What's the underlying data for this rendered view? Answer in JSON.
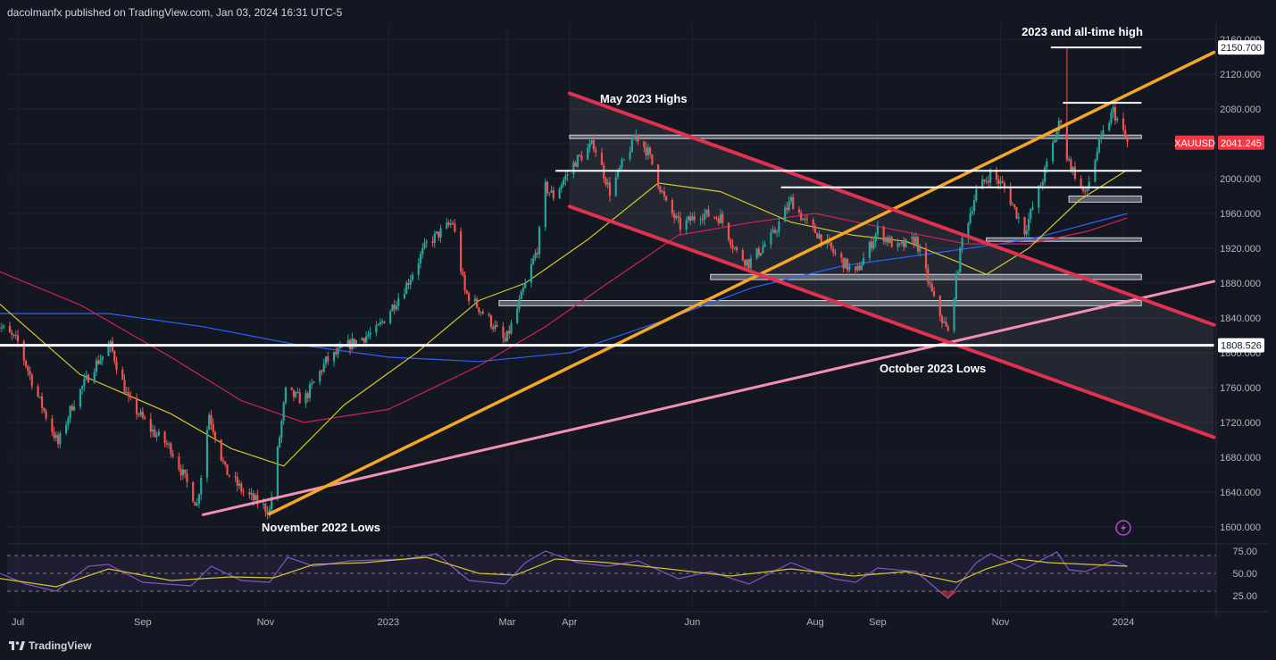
{
  "header": {
    "publisher_text": "dacolmanfx published on TradingView.com, Jan 03, 2024 16:31 UTC-5"
  },
  "footer": {
    "logo_text": "TradingView"
  },
  "colors": {
    "background": "#131722",
    "up_candle": "#26a69a",
    "down_candle": "#ef5350",
    "resistance_trendline": "#f5a623",
    "channel_lines": "#e0314e",
    "support_trendline": "#f48fb1",
    "sma50": "#d4c62a",
    "sma100": "#d3205b",
    "sma200": "#2962ff",
    "rsi_line": "#7e57c2",
    "rsi_signal": "#d4c62a",
    "price_tag": "#f23645"
  },
  "icons": {
    "alert": "alert-bolt-icon",
    "logo": "tradingview-logo-icon"
  },
  "chart_data": {
    "type": "candlestick",
    "symbol": "XAUUSD",
    "last_price": "2041.245",
    "marked_level": "1808.526",
    "marked_high": "2150.700",
    "ylim": [
      1600,
      2160
    ],
    "y_ticks": [
      "2160.000",
      "2120.000",
      "2080.000",
      "2040.000",
      "2000.000",
      "1960.000",
      "1920.000",
      "1880.000",
      "1840.000",
      "1800.000",
      "1760.000",
      "1720.000",
      "1680.000",
      "1640.000",
      "1600.000"
    ],
    "x_ticks": [
      "Jul",
      "Sep",
      "Nov",
      "2023",
      "Mar",
      "Apr",
      "Jun",
      "Aug",
      "Sep",
      "Nov",
      "2024"
    ],
    "x_tick_dates": [
      "2022-07-01",
      "2022-09-01",
      "2022-11-01",
      "2023-01-01",
      "2023-03-01",
      "2023-04-01",
      "2023-06-01",
      "2023-08-01",
      "2023-09-01",
      "2023-11-01",
      "2024-01-01"
    ],
    "annotations": {
      "ath": "2023 and all-time high",
      "may_highs": "May 2023 Highs",
      "oct_lows": "October 2023 Lows",
      "nov_lows": "November 2022 Lows"
    },
    "anchors": [
      [
        "2022-06-20",
        1835
      ],
      [
        "2022-07-01",
        1812
      ],
      [
        "2022-07-10",
        1755
      ],
      [
        "2022-07-21",
        1695
      ],
      [
        "2022-07-28",
        1740
      ],
      [
        "2022-08-08",
        1785
      ],
      [
        "2022-08-16",
        1808
      ],
      [
        "2022-08-25",
        1745
      ],
      [
        "2022-09-05",
        1712
      ],
      [
        "2022-09-15",
        1690
      ],
      [
        "2022-09-28",
        1625
      ],
      [
        "2022-10-04",
        1730
      ],
      [
        "2022-10-12",
        1665
      ],
      [
        "2022-10-21",
        1640
      ],
      [
        "2022-11-03",
        1618
      ],
      [
        "2022-11-11",
        1755
      ],
      [
        "2022-11-20",
        1745
      ],
      [
        "2022-12-01",
        1790
      ],
      [
        "2022-12-13",
        1810
      ],
      [
        "2022-12-26",
        1825
      ],
      [
        "2023-01-10",
        1878
      ],
      [
        "2023-01-20",
        1925
      ],
      [
        "2023-02-02",
        1950
      ],
      [
        "2023-02-08",
        1870
      ],
      [
        "2023-02-20",
        1838
      ],
      [
        "2023-02-28",
        1812
      ],
      [
        "2023-03-06",
        1850
      ],
      [
        "2023-03-16",
        1920
      ],
      [
        "2023-03-20",
        1990
      ],
      [
        "2023-03-24",
        1980
      ],
      [
        "2023-04-04",
        2020
      ],
      [
        "2023-04-13",
        2040
      ],
      [
        "2023-04-21",
        1985
      ],
      [
        "2023-05-04",
        2050
      ],
      [
        "2023-05-10",
        2030
      ],
      [
        "2023-05-19",
        1970
      ],
      [
        "2023-05-26",
        1945
      ],
      [
        "2023-06-05",
        1960
      ],
      [
        "2023-06-15",
        1955
      ],
      [
        "2023-06-23",
        1915
      ],
      [
        "2023-06-29",
        1903
      ],
      [
        "2023-07-11",
        1935
      ],
      [
        "2023-07-20",
        1975
      ],
      [
        "2023-07-27",
        1950
      ],
      [
        "2023-08-03",
        1935
      ],
      [
        "2023-08-10",
        1915
      ],
      [
        "2023-08-21",
        1890
      ],
      [
        "2023-09-01",
        1940
      ],
      [
        "2023-09-11",
        1920
      ],
      [
        "2023-09-20",
        1930
      ],
      [
        "2023-09-29",
        1860
      ],
      [
        "2023-10-06",
        1822
      ],
      [
        "2023-10-13",
        1930
      ],
      [
        "2023-10-20",
        1985
      ],
      [
        "2023-10-27",
        2005
      ],
      [
        "2023-11-03",
        1990
      ],
      [
        "2023-11-13",
        1940
      ],
      [
        "2023-11-22",
        2000
      ],
      [
        "2023-12-01",
        2070
      ],
      [
        "2023-12-04",
        2025
      ],
      [
        "2023-12-13",
        1980
      ],
      [
        "2023-12-20",
        2040
      ],
      [
        "2023-12-27",
        2078
      ],
      [
        "2024-01-03",
        2041
      ]
    ],
    "sma50": [
      [
        "2022-06-20",
        1860
      ],
      [
        "2022-08-01",
        1775
      ],
      [
        "2022-09-15",
        1730
      ],
      [
        "2022-10-15",
        1690
      ],
      [
        "2022-11-10",
        1670
      ],
      [
        "2022-12-10",
        1740
      ],
      [
        "2023-01-15",
        1800
      ],
      [
        "2023-02-15",
        1860
      ],
      [
        "2023-03-10",
        1880
      ],
      [
        "2023-04-10",
        1930
      ],
      [
        "2023-05-15",
        1995
      ],
      [
        "2023-06-15",
        1985
      ],
      [
        "2023-07-20",
        1950
      ],
      [
        "2023-08-20",
        1935
      ],
      [
        "2023-09-15",
        1928
      ],
      [
        "2023-10-10",
        1905
      ],
      [
        "2023-10-25",
        1890
      ],
      [
        "2023-11-15",
        1920
      ],
      [
        "2023-12-10",
        1975
      ],
      [
        "2024-01-03",
        2010
      ]
    ],
    "sma100": [
      [
        "2022-06-20",
        1895
      ],
      [
        "2022-08-01",
        1855
      ],
      [
        "2022-09-15",
        1795
      ],
      [
        "2022-10-20",
        1745
      ],
      [
        "2022-11-20",
        1720
      ],
      [
        "2023-01-01",
        1735
      ],
      [
        "2023-02-15",
        1785
      ],
      [
        "2023-03-20",
        1830
      ],
      [
        "2023-04-20",
        1880
      ],
      [
        "2023-05-25",
        1935
      ],
      [
        "2023-07-01",
        1950
      ],
      [
        "2023-08-01",
        1960
      ],
      [
        "2023-09-01",
        1945
      ],
      [
        "2023-10-15",
        1925
      ],
      [
        "2023-11-15",
        1925
      ],
      [
        "2023-12-15",
        1940
      ],
      [
        "2024-01-03",
        1955
      ]
    ],
    "sma200": [
      [
        "2022-06-20",
        1845
      ],
      [
        "2022-08-15",
        1845
      ],
      [
        "2022-10-01",
        1830
      ],
      [
        "2022-11-15",
        1810
      ],
      [
        "2023-01-01",
        1795
      ],
      [
        "2023-02-15",
        1790
      ],
      [
        "2023-04-01",
        1800
      ],
      [
        "2023-05-15",
        1835
      ],
      [
        "2023-07-01",
        1875
      ],
      [
        "2023-08-15",
        1900
      ],
      [
        "2023-10-01",
        1915
      ],
      [
        "2023-11-15",
        1930
      ],
      [
        "2024-01-03",
        1960
      ]
    ],
    "trendlines": {
      "orange_support_to_resistance": [
        [
          "2022-11-03",
          1615
        ],
        [
          "2024-02-15",
          2145
        ]
      ],
      "pink_rising": [
        [
          "2022-10-01",
          1614
        ],
        [
          "2024-02-15",
          1882
        ]
      ],
      "channel_upper": [
        [
          "2023-04-01",
          2098
        ],
        [
          "2024-02-15",
          1832
        ]
      ],
      "channel_lower": [
        [
          "2023-04-01",
          1968
        ],
        [
          "2024-02-15",
          1703
        ]
      ]
    },
    "levels": [
      {
        "from": "2022-06-20",
        "to": "2024-02-15",
        "value": 1808.526
      },
      {
        "from": "2023-03-25",
        "to": "2024-01-10",
        "value": 2009
      },
      {
        "from": "2023-07-15",
        "to": "2024-01-10",
        "value": 1990
      },
      {
        "from": "2023-12-02",
        "to": "2024-01-10",
        "value": 2087
      },
      {
        "from": "2023-11-26",
        "to": "2024-01-10",
        "value": 2150.7
      }
    ],
    "zones": [
      {
        "from": "2023-04-01",
        "to": "2024-01-10",
        "low": 2046,
        "high": 2050
      },
      {
        "from": "2023-12-05",
        "to": "2024-01-10",
        "low": 1973,
        "high": 1980
      },
      {
        "from": "2023-10-25",
        "to": "2024-01-10",
        "low": 1928,
        "high": 1932
      },
      {
        "from": "2023-06-10",
        "to": "2024-01-10",
        "low": 1884,
        "high": 1890
      },
      {
        "from": "2023-02-25",
        "to": "2024-01-10",
        "low": 1854,
        "high": 1860
      }
    ],
    "rsi": {
      "ylim": [
        20,
        80
      ],
      "y_ticks": [
        "75.00",
        "50.00",
        "25.00"
      ],
      "bands": [
        70,
        30
      ],
      "values": [
        [
          "2022-06-20",
          52
        ],
        [
          "2022-07-05",
          38
        ],
        [
          "2022-07-20",
          30
        ],
        [
          "2022-08-05",
          58
        ],
        [
          "2022-08-15",
          60
        ],
        [
          "2022-09-01",
          40
        ],
        [
          "2022-09-25",
          36
        ],
        [
          "2022-10-05",
          58
        ],
        [
          "2022-10-20",
          42
        ],
        [
          "2022-11-03",
          40
        ],
        [
          "2022-11-12",
          68
        ],
        [
          "2022-11-25",
          58
        ],
        [
          "2022-12-13",
          64
        ],
        [
          "2023-01-10",
          66
        ],
        [
          "2023-01-25",
          72
        ],
        [
          "2023-02-10",
          42
        ],
        [
          "2023-02-28",
          38
        ],
        [
          "2023-03-10",
          62
        ],
        [
          "2023-03-20",
          75
        ],
        [
          "2023-04-05",
          62
        ],
        [
          "2023-04-20",
          58
        ],
        [
          "2023-05-05",
          64
        ],
        [
          "2023-05-25",
          44
        ],
        [
          "2023-06-10",
          52
        ],
        [
          "2023-06-29",
          38
        ],
        [
          "2023-07-20",
          62
        ],
        [
          "2023-08-10",
          44
        ],
        [
          "2023-08-21",
          40
        ],
        [
          "2023-09-01",
          56
        ],
        [
          "2023-09-20",
          52
        ],
        [
          "2023-10-06",
          22
        ],
        [
          "2023-10-20",
          62
        ],
        [
          "2023-10-27",
          72
        ],
        [
          "2023-11-13",
          55
        ],
        [
          "2023-11-29",
          74
        ],
        [
          "2023-12-05",
          54
        ],
        [
          "2023-12-13",
          52
        ],
        [
          "2023-12-27",
          64
        ],
        [
          "2024-01-03",
          58
        ]
      ],
      "signal": [
        [
          "2022-06-20",
          45
        ],
        [
          "2022-07-20",
          35
        ],
        [
          "2022-08-15",
          55
        ],
        [
          "2022-09-15",
          42
        ],
        [
          "2022-10-15",
          46
        ],
        [
          "2022-11-05",
          45
        ],
        [
          "2022-11-25",
          60
        ],
        [
          "2022-12-20",
          62
        ],
        [
          "2023-01-20",
          68
        ],
        [
          "2023-02-15",
          50
        ],
        [
          "2023-03-05",
          48
        ],
        [
          "2023-03-25",
          66
        ],
        [
          "2023-04-20",
          62
        ],
        [
          "2023-05-20",
          55
        ],
        [
          "2023-06-20",
          47
        ],
        [
          "2023-07-20",
          55
        ],
        [
          "2023-08-20",
          47
        ],
        [
          "2023-09-15",
          52
        ],
        [
          "2023-10-10",
          40
        ],
        [
          "2023-10-25",
          55
        ],
        [
          "2023-11-10",
          66
        ],
        [
          "2023-11-25",
          62
        ],
        [
          "2023-12-15",
          60
        ],
        [
          "2024-01-03",
          58
        ]
      ]
    }
  }
}
